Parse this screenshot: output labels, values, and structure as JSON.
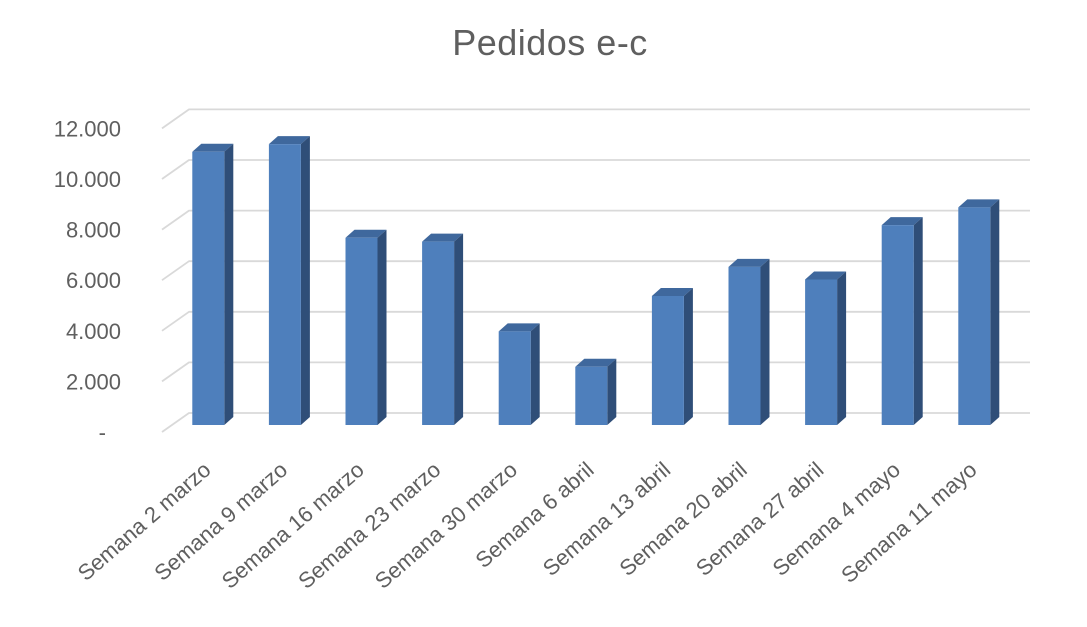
{
  "chart_data": {
    "type": "bar",
    "style": "3d-column",
    "title": "Pedidos e-c",
    "categories": [
      "Semana 2 marzo",
      "Semana 9 marzo",
      "Semana 16 marzo",
      "Semana 23 marzo",
      "Semana 30 marzo",
      "Semana 6 abril",
      "Semana 13 abril",
      "Semana 20 abril",
      "Semana 27 abril",
      "Semana 4 mayo",
      "Semana 11 mayo"
    ],
    "values": [
      10800,
      11100,
      7400,
      7250,
      3700,
      2300,
      5100,
      6250,
      5750,
      7900,
      8600
    ],
    "xlabel": "",
    "ylabel": "",
    "ylim": [
      0,
      12000
    ],
    "ytick_step": 2000,
    "ytick_labels": [
      "-",
      "2.000",
      "4.000",
      "6.000",
      "8.000",
      "10.000",
      "12.000"
    ],
    "grid": true,
    "legend": "none",
    "colors": {
      "bar_front": "#4e7fbc",
      "bar_top": "#3f689d",
      "bar_side": "#2f4e78",
      "gridline": "#d9d9d9",
      "text": "#5f5f5f",
      "background": "#ffffff"
    }
  }
}
